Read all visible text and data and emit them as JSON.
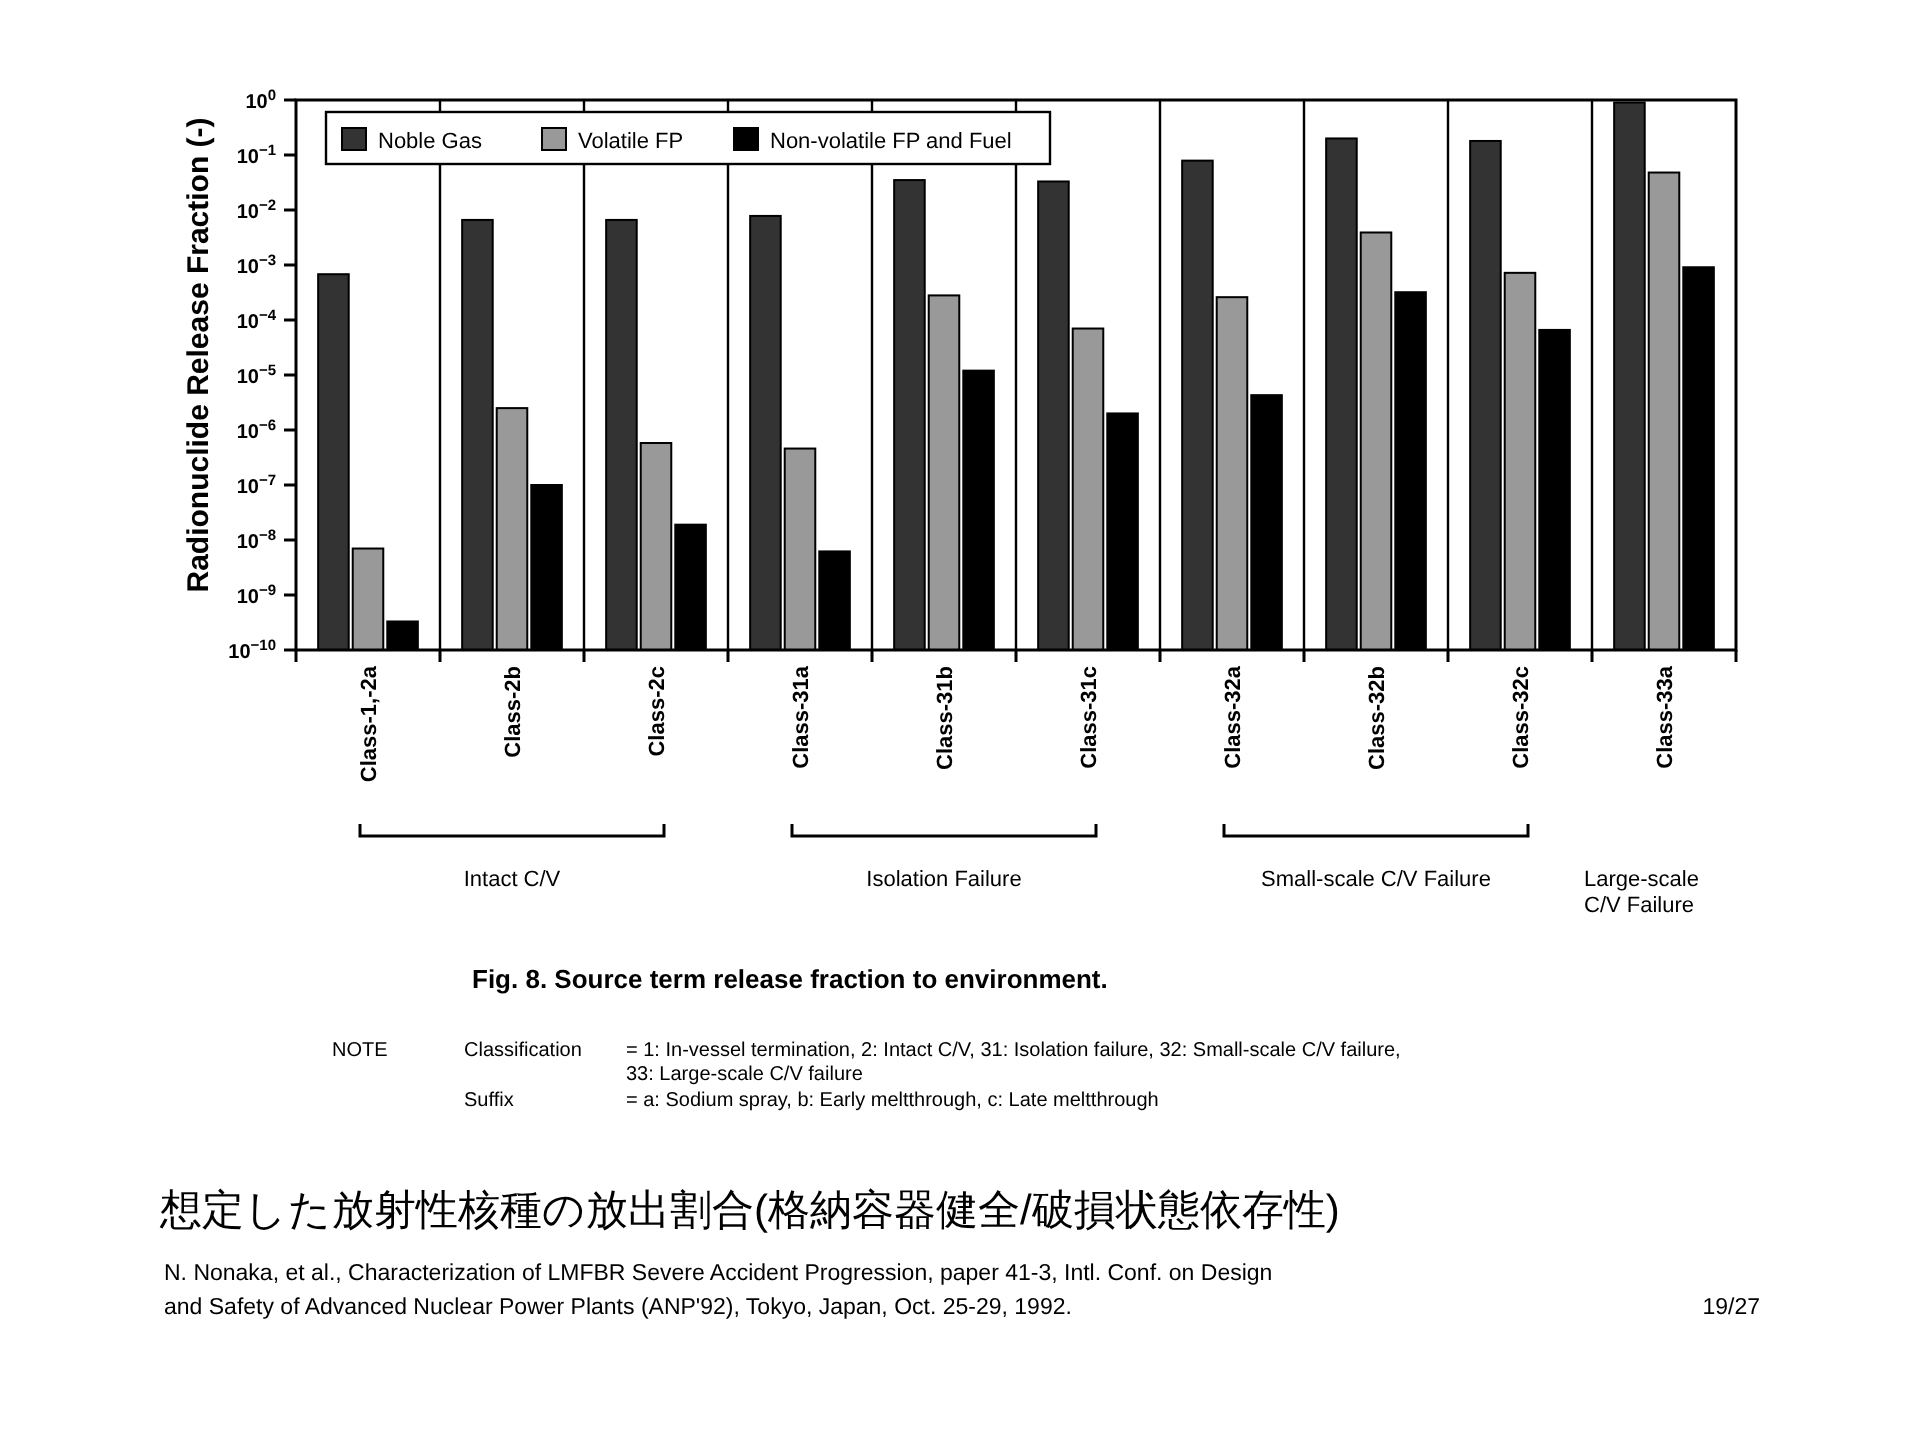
{
  "chart_data": {
    "type": "bar",
    "title": "Fig. 8.      Source term release fraction to environment.",
    "subtitle": "想定した放射性核種の放出割合(格納容器健全/破損状態依存性)",
    "ylabel": "Radionuclide  Release  Fraction  (-)",
    "categories": [
      "Class-1,-2a",
      "Class-2b",
      "Class-2c",
      "Class-31a",
      "Class-31b",
      "Class-31c",
      "Class-32a",
      "Class-32b",
      "Class-32c",
      "Class-33a"
    ],
    "series": [
      {
        "name": "Noble Gas",
        "color": "#333333",
        "values": [
          0.00068,
          0.0066,
          0.0066,
          0.0078,
          0.035,
          0.033,
          0.079,
          0.2,
          0.18,
          0.9
        ]
      },
      {
        "name": "Volatile FP",
        "color": "#999999",
        "values": [
          7e-09,
          2.5e-06,
          5.8e-07,
          4.6e-07,
          0.00028,
          7e-05,
          0.00026,
          0.0039,
          0.00072,
          0.048
        ]
      },
      {
        "name": "Non-volatile FP and Fuel",
        "color": "#000000",
        "values": [
          3.3e-10,
          1e-07,
          1.9e-08,
          6.2e-09,
          1.2e-05,
          2e-06,
          4.3e-06,
          0.00032,
          6.6e-05,
          0.00091
        ]
      }
    ],
    "log": true,
    "ylim": [
      1e-10,
      1
    ],
    "yticks": [
      {
        "value": 1,
        "label": "10$^{0}$"
      },
      {
        "value": 0.1,
        "label": "10$^{−1}$"
      },
      {
        "value": 0.01,
        "label": "10$^{−2}$"
      },
      {
        "value": 0.001,
        "label": "10$^{−3}$"
      },
      {
        "value": 0.0001,
        "label": "10$^{−4}$"
      },
      {
        "value": 1e-05,
        "label": "10$^{−5}$"
      },
      {
        "value": 1e-06,
        "label": "10$^{−6}$"
      },
      {
        "value": 1e-07,
        "label": "10$^{−7}$"
      },
      {
        "value": 1e-08,
        "label": "10$^{−8}$"
      },
      {
        "value": 1e-09,
        "label": "10$^{−9}$"
      },
      {
        "value": 1e-10,
        "label": "10$^{−10}$"
      }
    ],
    "grid": "x",
    "legend": "top left",
    "annotations": [
      "Intact C/V",
      "Isolation Failure",
      "Small-scale C/V Failure",
      "Large-scale C/V Failure",
      "NOTE",
      "Classification",
      "= 1: In-vessel termination, 2: Intact C/V, 31: Isolation failure, 32: Small-scale C/V failure,",
      "33: Large-scale C/V failure",
      "Suffix",
      "= a: Sodium spray, b: Early meltthrough, c: Late meltthrough",
      "N. Nonaka, et al., Characterization of LMFBR Severe Accident Progression, paper 41-3, Intl. Conf. on Design",
      "and Safety of Advanced Nuclear Power Plants (ANP'92), Tokyo, Japan, Oct. 25-29, 1992.",
      "19/27"
    ]
  }
}
